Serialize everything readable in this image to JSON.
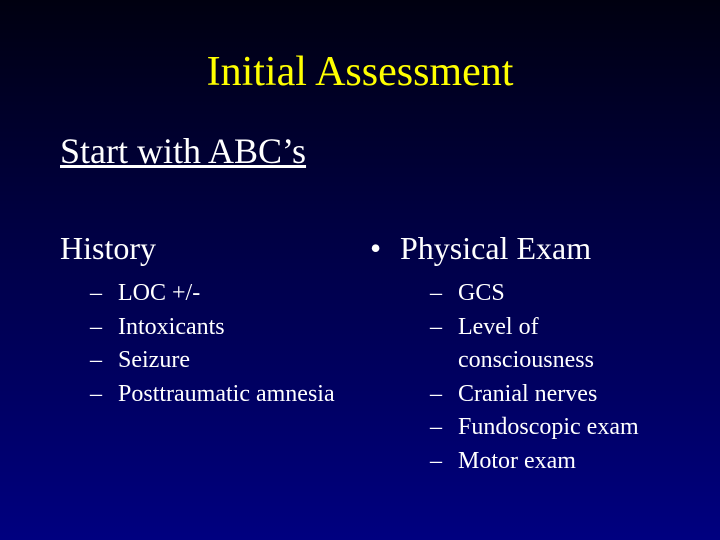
{
  "title": "Initial Assessment",
  "subtitle": "Start with ABC’s",
  "left": {
    "heading": "History",
    "items": [
      "LOC +/-",
      "Intoxicants",
      "Seizure",
      "Posttraumatic amnesia"
    ]
  },
  "right": {
    "bullet": "•",
    "heading": "Physical Exam",
    "items": [
      "GCS",
      "Level of consciousness",
      "Cranial nerves",
      "Fundoscopic exam",
      "Motor exam"
    ]
  },
  "dash": "–",
  "colors": {
    "title": "#ffff00",
    "text": "#ffffff",
    "bg_top": "#000010",
    "bg_bottom": "#000080"
  }
}
